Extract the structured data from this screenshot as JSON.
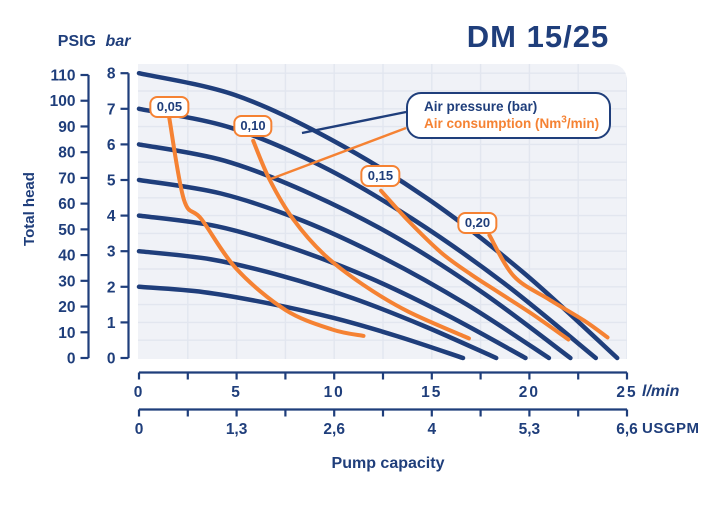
{
  "title": "DM 15/25",
  "colors": {
    "navy": "#1f3e7b",
    "orange": "#f58233",
    "plot_bg": "#f0f2f7",
    "grid": "#e2e6ef",
    "page_bg": "#ffffff"
  },
  "labels": {
    "psig_header": "PSIG",
    "bar_header": "bar",
    "y_title": "Total head",
    "x_title": "Pump capacity",
    "lmin_unit": "l/min",
    "usgpm_unit": "USGPM"
  },
  "legend": {
    "pressure": "Air pressure (bar)",
    "consumption_pre": "Air consumption (Nm",
    "consumption_sup": "3",
    "consumption_post": "/min)"
  },
  "chart_data": {
    "type": "line",
    "title": "DM 15/25",
    "x_axis_lmin": {
      "label": "l/min",
      "range": [
        0,
        25
      ],
      "major_ticks": [
        0,
        5,
        10,
        15,
        20,
        25
      ],
      "major_tick_labels": [
        "0",
        "5",
        "10",
        "15",
        "20",
        "25"
      ],
      "minor_step": 2.5
    },
    "x_axis_usgpm": {
      "label": "USGPM",
      "range": [
        0,
        6.6
      ],
      "major_ticks": [
        0,
        1.3,
        2.6,
        4,
        5.3,
        6.6
      ],
      "major_tick_labels": [
        "0",
        "1,3",
        "2,6",
        "4",
        "5,3",
        "6,6"
      ]
    },
    "y_axis_bar": {
      "label": "bar",
      "range": [
        0,
        8
      ],
      "ticks": [
        8,
        7,
        6,
        5,
        4,
        3,
        2,
        1,
        0
      ]
    },
    "y_axis_psig": {
      "label": "PSIG",
      "range": [
        0,
        110
      ],
      "ticks": [
        110,
        100,
        90,
        80,
        70,
        60,
        50,
        40,
        30,
        20,
        10,
        0
      ]
    },
    "grid": {
      "x_step_lmin": 2.5,
      "y_step_bar": 0.5,
      "visible": true
    },
    "pressure_curves": [
      {
        "name": "8 bar",
        "points": [
          [
            0,
            8
          ],
          [
            4.9,
            7.39
          ],
          [
            9.8,
            6.15
          ],
          [
            14.8,
            4.47
          ],
          [
            19.7,
            2.4
          ],
          [
            24.5,
            0
          ]
        ]
      },
      {
        "name": "7 bar",
        "points": [
          [
            0,
            7
          ],
          [
            4.7,
            6.47
          ],
          [
            9.4,
            5.38
          ],
          [
            14.0,
            3.91
          ],
          [
            18.7,
            2.1
          ],
          [
            23.4,
            0
          ]
        ]
      },
      {
        "name": "6 bar",
        "points": [
          [
            0,
            6
          ],
          [
            4.4,
            5.54
          ],
          [
            8.8,
            4.61
          ],
          [
            13.3,
            3.35
          ],
          [
            17.7,
            1.8
          ],
          [
            22.1,
            0
          ]
        ]
      },
      {
        "name": "5 bar",
        "points": [
          [
            0,
            5
          ],
          [
            4.2,
            4.62
          ],
          [
            8.4,
            3.85
          ],
          [
            12.6,
            2.79
          ],
          [
            16.8,
            1.5
          ],
          [
            21.0,
            0
          ]
        ]
      },
      {
        "name": "4 bar",
        "points": [
          [
            0,
            4
          ],
          [
            4.0,
            3.7
          ],
          [
            7.9,
            3.08
          ],
          [
            11.9,
            2.23
          ],
          [
            15.8,
            1.2
          ],
          [
            19.8,
            0
          ]
        ]
      },
      {
        "name": "3 bar",
        "points": [
          [
            0,
            3
          ],
          [
            3.7,
            2.77
          ],
          [
            7.3,
            2.31
          ],
          [
            11.0,
            1.67
          ],
          [
            14.6,
            0.9
          ],
          [
            18.3,
            0
          ]
        ]
      },
      {
        "name": "2 bar",
        "points": [
          [
            0,
            2
          ],
          [
            3.3,
            1.85
          ],
          [
            6.6,
            1.54
          ],
          [
            10.0,
            1.12
          ],
          [
            13.3,
            0.6
          ],
          [
            16.6,
            0
          ]
        ]
      }
    ],
    "consumption_curves": [
      {
        "name": "0,05",
        "label_anchor": [
          1.56,
          7.06
        ],
        "points": [
          [
            1.55,
            6.74
          ],
          [
            2.3,
            4.45
          ],
          [
            3.2,
            3.9
          ],
          [
            5.0,
            2.5
          ],
          [
            7.5,
            1.35
          ],
          [
            9.9,
            0.8
          ],
          [
            11.5,
            0.62
          ]
        ]
      },
      {
        "name": "0,10",
        "label_anchor": [
          5.84,
          6.53
        ],
        "points": [
          [
            5.85,
            6.1
          ],
          [
            6.7,
            5.0
          ],
          [
            7.9,
            3.9
          ],
          [
            9.5,
            2.9
          ],
          [
            11.5,
            2.05
          ],
          [
            13.8,
            1.3
          ],
          [
            16.9,
            0.55
          ]
        ]
      },
      {
        "name": "0,15",
        "label_anchor": [
          12.37,
          5.1
        ],
        "points": [
          [
            12.4,
            4.7
          ],
          [
            13.8,
            3.85
          ],
          [
            15.5,
            2.95
          ],
          [
            17.0,
            2.35
          ],
          [
            18.4,
            1.85
          ],
          [
            20.1,
            1.25
          ],
          [
            22.0,
            0.52
          ]
        ]
      },
      {
        "name": "0,20",
        "label_anchor": [
          17.34,
          3.78
        ],
        "points": [
          [
            17.95,
            3.45
          ],
          [
            19.2,
            2.3
          ],
          [
            21.0,
            1.65
          ],
          [
            22.8,
            1.05
          ],
          [
            24.0,
            0.58
          ]
        ]
      }
    ],
    "legend_callouts": {
      "pressure_from": [
        13.68,
        6.91
      ],
      "pressure_to": [
        8.35,
        6.32
      ],
      "consumption_from": [
        13.68,
        6.46
      ],
      "consumption_to": [
        6.76,
        5.03
      ]
    }
  }
}
